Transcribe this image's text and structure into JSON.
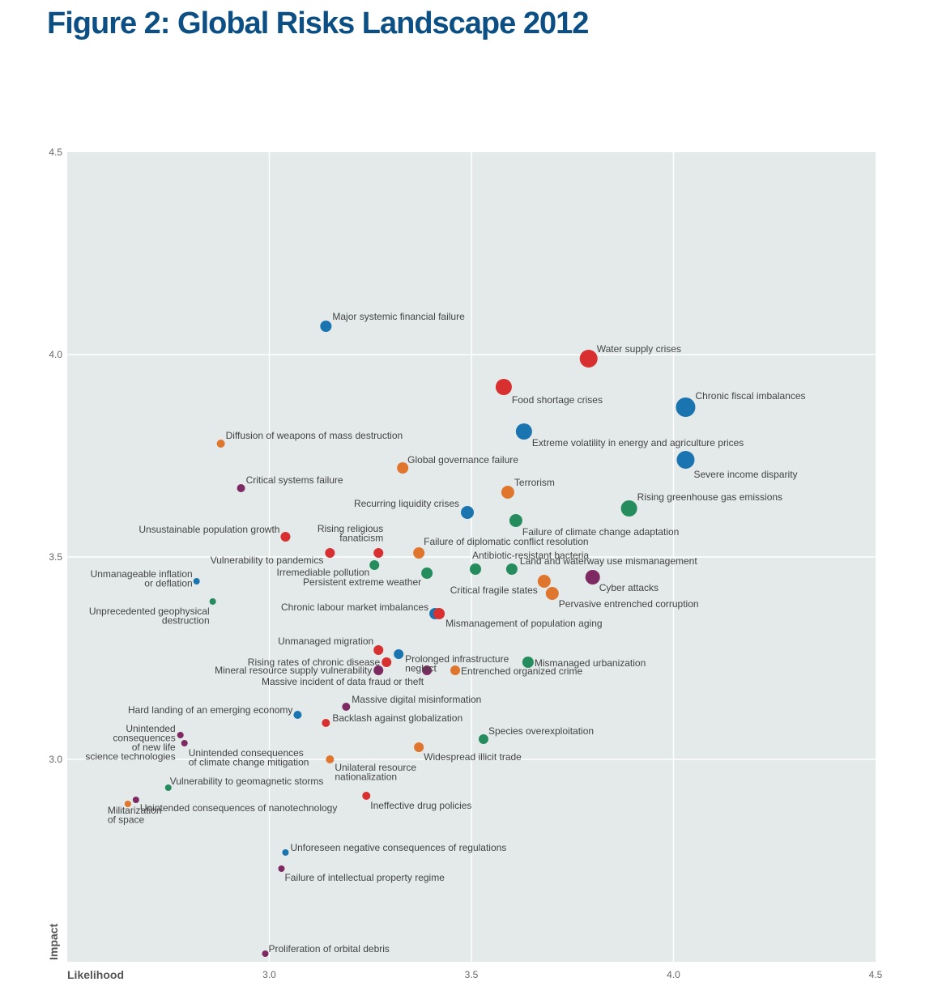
{
  "title": "Figure 2: Global Risks Landscape 2012",
  "colors": {
    "plot_bg": "#e4e9e9",
    "grid": "#ffffff",
    "economic": "#1a74b0",
    "environmental": "#258c5d",
    "geopolitical": "#e0762e",
    "societal": "#d82f30",
    "technological": "#7d2a63"
  },
  "chart_data": {
    "type": "scatter",
    "title": "Figure 2: Global Risks Landscape 2012",
    "xlabel": "Likelihood",
    "ylabel": "Impact",
    "xlim": [
      2.5,
      4.5
    ],
    "ylim": [
      2.5,
      4.5
    ],
    "xticks": [
      "3.0",
      "3.5",
      "4.0",
      "4.5"
    ],
    "yticks": [
      "4.5",
      "4.0",
      "3.5",
      "3.0"
    ],
    "grid": true,
    "points": [
      {
        "label": "Major systemic financial failure",
        "x": 3.14,
        "y": 4.07,
        "color": "economic",
        "size": 7
      },
      {
        "label": "Water supply crises",
        "x": 3.79,
        "y": 3.99,
        "color": "societal",
        "size": 11
      },
      {
        "label": "Food shortage crises",
        "x": 3.58,
        "y": 3.92,
        "color": "societal",
        "size": 10
      },
      {
        "label": "Chronic fiscal imbalances",
        "x": 4.03,
        "y": 3.87,
        "color": "economic",
        "size": 12
      },
      {
        "label": "Extreme volatility in energy and agriculture prices",
        "x": 3.63,
        "y": 3.81,
        "color": "economic",
        "size": 10
      },
      {
        "label": "Diffusion of weapons of mass destruction",
        "x": 2.88,
        "y": 3.78,
        "color": "geopolitical",
        "size": 5
      },
      {
        "label": "Severe income disparity",
        "x": 4.03,
        "y": 3.74,
        "color": "economic",
        "size": 11
      },
      {
        "label": "Global governance failure",
        "x": 3.33,
        "y": 3.72,
        "color": "geopolitical",
        "size": 7
      },
      {
        "label": "Critical systems failure",
        "x": 2.93,
        "y": 3.67,
        "color": "technological",
        "size": 5
      },
      {
        "label": "Terrorism",
        "x": 3.59,
        "y": 3.66,
        "color": "geopolitical",
        "size": 8
      },
      {
        "label": "Rising greenhouse gas emissions",
        "x": 3.89,
        "y": 3.62,
        "color": "environmental",
        "size": 10
      },
      {
        "label": "Recurring liquidity crises",
        "x": 3.49,
        "y": 3.61,
        "color": "economic",
        "size": 8
      },
      {
        "label": "Failure of climate change adaptation",
        "x": 3.61,
        "y": 3.59,
        "color": "environmental",
        "size": 8
      },
      {
        "label": "Unsustainable population growth",
        "x": 3.04,
        "y": 3.55,
        "color": "societal",
        "size": 6
      },
      {
        "label": "Rising religious fanaticism",
        "x": 3.27,
        "y": 3.51,
        "color": "societal",
        "size": 6
      },
      {
        "label": "Vulnerability to pandemics",
        "x": 3.15,
        "y": 3.51,
        "color": "societal",
        "size": 6
      },
      {
        "label": "Failure of diplomatic conflict resolution",
        "x": 3.37,
        "y": 3.51,
        "color": "geopolitical",
        "size": 7
      },
      {
        "label": "Irremediable pollution",
        "x": 3.26,
        "y": 3.48,
        "color": "environmental",
        "size": 6
      },
      {
        "label": "Antibiotic-resistant bacteria",
        "x": 3.51,
        "y": 3.47,
        "color": "environmental",
        "size": 7
      },
      {
        "label": "Land and waterway use mismanagement",
        "x": 3.6,
        "y": 3.47,
        "color": "environmental",
        "size": 7
      },
      {
        "label": "Persistent extreme weather",
        "x": 3.39,
        "y": 3.46,
        "color": "environmental",
        "size": 7
      },
      {
        "label": "Unmanageable inflation or deflation",
        "x": 2.82,
        "y": 3.44,
        "color": "economic",
        "size": 4
      },
      {
        "label": "Cyber attacks",
        "x": 3.8,
        "y": 3.45,
        "color": "technological",
        "size": 9
      },
      {
        "label": "Critical fragile states",
        "x": 3.68,
        "y": 3.44,
        "color": "geopolitical",
        "size": 8
      },
      {
        "label": "Pervasive entrenched corruption",
        "x": 3.7,
        "y": 3.41,
        "color": "geopolitical",
        "size": 8
      },
      {
        "label": "Unprecedented geophysical destruction",
        "x": 2.86,
        "y": 3.39,
        "color": "environmental",
        "size": 4
      },
      {
        "label": "Chronic labour market imbalances",
        "x": 3.41,
        "y": 3.36,
        "color": "economic",
        "size": 7
      },
      {
        "label": "Mismanagement of population aging",
        "x": 3.42,
        "y": 3.36,
        "color": "societal",
        "size": 7
      },
      {
        "label": "Unmanaged migration",
        "x": 3.27,
        "y": 3.27,
        "color": "societal",
        "size": 6
      },
      {
        "label": "Prolonged infrastructure neglect",
        "x": 3.32,
        "y": 3.26,
        "color": "economic",
        "size": 6
      },
      {
        "label": "Rising rates of chronic disease",
        "x": 3.29,
        "y": 3.24,
        "color": "societal",
        "size": 6
      },
      {
        "label": "Mismanaged urbanization",
        "x": 3.64,
        "y": 3.24,
        "color": "environmental",
        "size": 7
      },
      {
        "label": "Mineral resource supply vulnerability",
        "x": 3.27,
        "y": 3.22,
        "color": "technological",
        "size": 6
      },
      {
        "label": "Massive incident of data fraud or theft",
        "x": 3.39,
        "y": 3.22,
        "color": "technological",
        "size": 6
      },
      {
        "label": "Entrenched organized crime",
        "x": 3.46,
        "y": 3.22,
        "color": "geopolitical",
        "size": 6
      },
      {
        "label": "Massive digital misinformation",
        "x": 3.19,
        "y": 3.13,
        "color": "technological",
        "size": 5
      },
      {
        "label": "Hard landing of an emerging economy",
        "x": 3.07,
        "y": 3.11,
        "color": "economic",
        "size": 5
      },
      {
        "label": "Backlash against globalization",
        "x": 3.14,
        "y": 3.09,
        "color": "societal",
        "size": 5
      },
      {
        "label": "Unintended consequences of new life science technologies",
        "x": 2.78,
        "y": 3.06,
        "color": "technological",
        "size": 4
      },
      {
        "label": "Species overexploitation",
        "x": 3.53,
        "y": 3.05,
        "color": "environmental",
        "size": 6
      },
      {
        "label": "Unintended consequences of climate change mitigation",
        "x": 2.79,
        "y": 3.04,
        "color": "technological",
        "size": 4
      },
      {
        "label": "Widespread illicit trade",
        "x": 3.37,
        "y": 3.03,
        "color": "geopolitical",
        "size": 6
      },
      {
        "label": "Unilateral resource nationalization",
        "x": 3.15,
        "y": 3.0,
        "color": "geopolitical",
        "size": 5
      },
      {
        "label": "Vulnerability to geomagnetic storms",
        "x": 2.75,
        "y": 2.93,
        "color": "environmental",
        "size": 4
      },
      {
        "label": "Ineffective drug policies",
        "x": 3.24,
        "y": 2.91,
        "color": "societal",
        "size": 5
      },
      {
        "label": "Unintended consequences of nanotechnology",
        "x": 2.67,
        "y": 2.9,
        "color": "technological",
        "size": 4
      },
      {
        "label": "Militarization of space",
        "x": 2.65,
        "y": 2.89,
        "color": "geopolitical",
        "size": 4
      },
      {
        "label": "Unforeseen negative consequences of regulations",
        "x": 3.04,
        "y": 2.77,
        "color": "economic",
        "size": 4
      },
      {
        "label": "Failure of intellectual property regime",
        "x": 3.03,
        "y": 2.73,
        "color": "technological",
        "size": 4
      },
      {
        "label": "Proliferation of orbital debris",
        "x": 2.99,
        "y": 2.52,
        "color": "technological",
        "size": 4
      }
    ]
  },
  "label_lines": {
    "Major systemic financial failure": [
      "Major systemic financial failure"
    ],
    "Water supply crises": [
      "Water supply crises"
    ],
    "Food shortage crises": [
      "Food shortage crises"
    ],
    "Chronic fiscal imbalances": [
      "Chronic fiscal imbalances"
    ],
    "Extreme volatility in energy and agriculture prices": [
      "Extreme volatility in energy and agriculture prices"
    ],
    "Diffusion of weapons of mass destruction": [
      "Diffusion of weapons of mass destruction"
    ],
    "Severe income disparity": [
      "Severe income disparity"
    ],
    "Global governance failure": [
      "Global governance failure"
    ],
    "Critical systems failure": [
      "Critical systems failure"
    ],
    "Terrorism": [
      "Terrorism"
    ],
    "Rising greenhouse gas emissions": [
      "Rising greenhouse gas emissions"
    ],
    "Recurring liquidity crises": [
      "Recurring liquidity crises"
    ],
    "Failure of climate change adaptation": [
      "Failure of climate change adaptation"
    ],
    "Unsustainable population growth": [
      "Unsustainable population growth"
    ],
    "Rising religious fanaticism": [
      "Rising religious",
      "fanaticism"
    ],
    "Vulnerability to pandemics": [
      "Vulnerability to pandemics"
    ],
    "Failure of diplomatic conflict resolution": [
      "Failure of diplomatic conflict resolution"
    ],
    "Irremediable pollution": [
      "Irremediable pollution"
    ],
    "Antibiotic-resistant bacteria": [
      "Antibiotic-resistant bacteria"
    ],
    "Land and waterway use mismanagement": [
      "Land and waterway use mismanagement"
    ],
    "Persistent extreme weather": [
      "Persistent extreme weather"
    ],
    "Unmanageable inflation or deflation": [
      "Unmanageable inflation",
      "or deflation"
    ],
    "Cyber attacks": [
      "Cyber attacks"
    ],
    "Critical fragile states": [
      "Critical fragile states"
    ],
    "Pervasive entrenched corruption": [
      "Pervasive entrenched corruption"
    ],
    "Unprecedented geophysical destruction": [
      "Unprecedented geophysical",
      "destruction"
    ],
    "Chronic labour market imbalances": [
      "Chronic labour market imbalances"
    ],
    "Mismanagement of population aging": [
      "Mismanagement of population aging"
    ],
    "Unmanaged migration": [
      "Unmanaged migration"
    ],
    "Prolonged infrastructure neglect": [
      "Prolonged infrastructure",
      "neglect"
    ],
    "Rising rates of chronic disease": [
      "Rising rates of chronic disease"
    ],
    "Mismanaged urbanization": [
      "Mismanaged urbanization"
    ],
    "Mineral resource supply vulnerability": [
      "Mineral resource supply vulnerability"
    ],
    "Massive incident of data fraud or theft": [
      "Massive incident of data fraud or theft"
    ],
    "Entrenched organized crime": [
      "Entrenched organized crime"
    ],
    "Massive digital misinformation": [
      "Massive digital misinformation"
    ],
    "Hard landing of an emerging economy": [
      "Hard landing of an emerging economy"
    ],
    "Backlash against globalization": [
      "Backlash against globalization"
    ],
    "Unintended consequences of new life science technologies": [
      "Unintended",
      "consequences",
      "of new life",
      "science technologies"
    ],
    "Species overexploitation": [
      "Species overexploitation"
    ],
    "Unintended consequences of climate change mitigation": [
      "Unintended consequences",
      "of climate change mitigation"
    ],
    "Widespread illicit trade": [
      "Widespread illicit trade"
    ],
    "Unilateral resource nationalization": [
      "Unilateral resource",
      "nationalization"
    ],
    "Vulnerability to geomagnetic storms": [
      "Vulnerability to geomagnetic storms"
    ],
    "Ineffective drug policies": [
      "Ineffective drug policies"
    ],
    "Unintended consequences of nanotechnology": [
      "Unintended consequences of nanotechnology"
    ],
    "Militarization of space": [
      "Militarization",
      "of space"
    ],
    "Unforeseen negative consequences of regulations": [
      "Unforeseen negative consequences of regulations"
    ],
    "Failure of intellectual property regime": [
      "Failure of intellectual property regime"
    ],
    "Proliferation of orbital debris": [
      "Proliferation of orbital debris"
    ]
  }
}
